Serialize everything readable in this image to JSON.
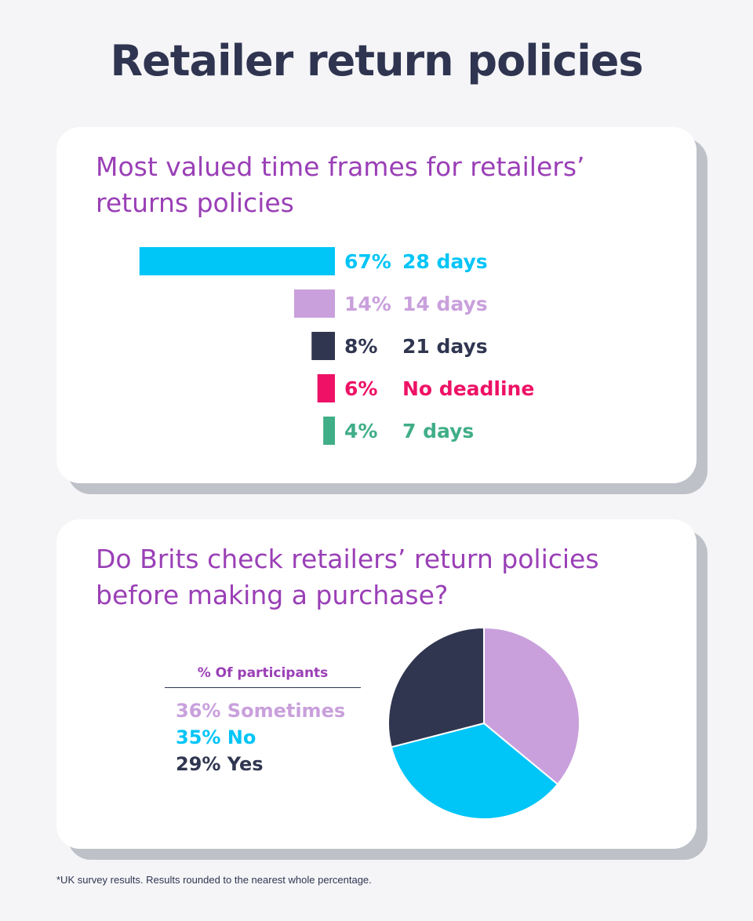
{
  "title": "Retailer return policies",
  "footnote": "*UK survey results. Results rounded to the nearest whole percentage.",
  "chart_data": [
    {
      "type": "bar",
      "orientation": "horizontal",
      "title": "Most valued time frames for retailers’ returns policies",
      "categories": [
        "28 days",
        "14 days",
        "21 days",
        "No deadline",
        "7 days"
      ],
      "values": [
        67,
        14,
        8,
        6,
        4
      ],
      "value_labels": [
        "67%",
        "14%",
        "8%",
        "6%",
        "4%"
      ],
      "colors": [
        "#00c5f7",
        "#c9a0dc",
        "#303650",
        "#ee1166",
        "#40ae87"
      ],
      "grid": false
    },
    {
      "type": "pie",
      "title": "Do Brits check retailers’ return policies before making a purchase?",
      "legend_title": "% Of participants",
      "categories": [
        "Sometimes",
        "No",
        "Yes"
      ],
      "values": [
        36,
        35,
        29
      ],
      "legend_labels": [
        "36% Sometimes",
        "35% No",
        "29% Yes"
      ],
      "colors": [
        "#c9a0dc",
        "#00c5f7",
        "#303650"
      ],
      "legend_placement": "left"
    }
  ]
}
